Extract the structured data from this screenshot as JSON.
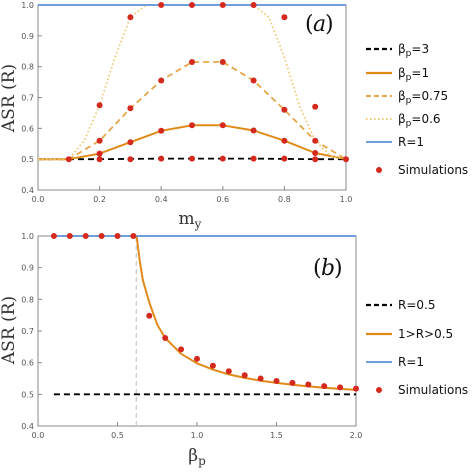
{
  "chart_data": [
    {
      "panel": "(a)",
      "type": "line",
      "xlabel": "m_y",
      "ylabel": "ASR (R)",
      "xlim": [
        0,
        1
      ],
      "ylim": [
        0.4,
        1.0
      ],
      "xticks": [
        "0.0",
        "0.2",
        "0.4",
        "0.6",
        "0.8",
        "1.0"
      ],
      "yticks": [
        "0.4",
        "0.5",
        "0.6",
        "0.7",
        "0.8",
        "0.9",
        "1.0"
      ],
      "grid": false,
      "legend_placement": "right",
      "series": [
        {
          "name": "β_p=3",
          "style": "dashed",
          "color": "#000000",
          "x": [
            0,
            0.1,
            0.2,
            0.3,
            0.4,
            0.5,
            0.6,
            0.7,
            0.8,
            0.9,
            1.0
          ],
          "y": [
            0.5,
            0.5,
            0.5,
            0.501,
            0.502,
            0.502,
            0.502,
            0.502,
            0.501,
            0.5,
            0.5
          ]
        },
        {
          "name": "β_p=1",
          "style": "solid",
          "color": "#e08a1a",
          "x": [
            0,
            0.1,
            0.2,
            0.3,
            0.4,
            0.5,
            0.6,
            0.7,
            0.8,
            0.9,
            1.0
          ],
          "y": [
            0.5,
            0.5,
            0.518,
            0.555,
            0.592,
            0.61,
            0.61,
            0.593,
            0.56,
            0.52,
            0.5
          ]
        },
        {
          "name": "β_p=0.75",
          "style": "dashed",
          "color": "#e6a64a",
          "x": [
            0,
            0.1,
            0.2,
            0.3,
            0.4,
            0.5,
            0.6,
            0.7,
            0.8,
            0.9,
            1.0
          ],
          "y": [
            0.5,
            0.5,
            0.56,
            0.665,
            0.755,
            0.815,
            0.815,
            0.755,
            0.66,
            0.56,
            0.5
          ]
        },
        {
          "name": "β_p=0.6",
          "style": "dotted",
          "color": "#f0c870",
          "x": [
            0,
            0.1,
            0.15,
            0.2,
            0.25,
            0.3,
            0.35,
            0.7,
            0.75,
            0.8,
            0.85,
            0.9,
            0.95,
            1.0
          ],
          "y": [
            0.5,
            0.5,
            0.56,
            0.675,
            0.83,
            0.96,
            1.0,
            1.0,
            0.96,
            0.83,
            0.67,
            0.56,
            0.51,
            0.5
          ]
        },
        {
          "name": "R=1",
          "style": "solid",
          "color": "#6f9ed8",
          "x": [
            0,
            1.0
          ],
          "y": [
            1.0,
            1.0
          ]
        }
      ],
      "simulations": {
        "name": "Simulations",
        "color": "#d42a1e",
        "points": [
          [
            0.1,
            0.5
          ],
          [
            0.2,
            0.5
          ],
          [
            0.3,
            0.5
          ],
          [
            0.4,
            0.502
          ],
          [
            0.5,
            0.502
          ],
          [
            0.6,
            0.502
          ],
          [
            0.7,
            0.502
          ],
          [
            0.8,
            0.502
          ],
          [
            0.9,
            0.5
          ],
          [
            1.0,
            0.5
          ],
          [
            0.2,
            0.518
          ],
          [
            0.3,
            0.555
          ],
          [
            0.4,
            0.592
          ],
          [
            0.5,
            0.61
          ],
          [
            0.6,
            0.61
          ],
          [
            0.7,
            0.593
          ],
          [
            0.8,
            0.56
          ],
          [
            0.9,
            0.52
          ],
          [
            0.2,
            0.56
          ],
          [
            0.3,
            0.665
          ],
          [
            0.4,
            0.755
          ],
          [
            0.5,
            0.815
          ],
          [
            0.6,
            0.815
          ],
          [
            0.7,
            0.755
          ],
          [
            0.8,
            0.66
          ],
          [
            0.9,
            0.56
          ],
          [
            0.2,
            0.675
          ],
          [
            0.3,
            0.96
          ],
          [
            0.4,
            1.0
          ],
          [
            0.5,
            1.0
          ],
          [
            0.6,
            1.0
          ],
          [
            0.7,
            1.0
          ],
          [
            0.8,
            0.96
          ],
          [
            0.9,
            0.67
          ]
        ]
      }
    },
    {
      "panel": "(b)",
      "type": "line",
      "xlabel": "β_p",
      "ylabel": "ASR (R)",
      "xlim": [
        0,
        2.0
      ],
      "ylim": [
        0.4,
        1.0
      ],
      "xticks": [
        "0.0",
        "0.5",
        "1.0",
        "1.5",
        "2.0"
      ],
      "yticks": [
        "0.4",
        "0.5",
        "0.6",
        "0.7",
        "0.8",
        "0.9",
        "1.0"
      ],
      "grid": false,
      "legend_placement": "right",
      "vline_x": 0.618,
      "series": [
        {
          "name": "R=0.5",
          "style": "dashed",
          "color": "#000000",
          "x": [
            0.1,
            2.0
          ],
          "y": [
            0.5,
            0.5
          ]
        },
        {
          "name": "1>R>0.5",
          "style": "solid",
          "color": "#e08a1a",
          "x": [
            0.62,
            0.64,
            0.66,
            0.7,
            0.75,
            0.8,
            0.9,
            1.0,
            1.1,
            1.2,
            1.3,
            1.4,
            1.5,
            1.6,
            1.7,
            1.8,
            1.9,
            2.0
          ],
          "y": [
            1.0,
            0.92,
            0.86,
            0.79,
            0.72,
            0.678,
            0.628,
            0.598,
            0.578,
            0.563,
            0.552,
            0.543,
            0.536,
            0.53,
            0.525,
            0.521,
            0.517,
            0.514
          ]
        },
        {
          "name": "R=1",
          "style": "solid",
          "color": "#6f9ed8",
          "x": [
            0.1,
            2.0
          ],
          "y": [
            1.0,
            1.0
          ]
        }
      ],
      "simulations": {
        "name": "Simulations",
        "color": "#d42a1e",
        "points": [
          [
            0.1,
            1.0
          ],
          [
            0.2,
            1.0
          ],
          [
            0.3,
            1.0
          ],
          [
            0.4,
            1.0
          ],
          [
            0.5,
            1.0
          ],
          [
            0.6,
            1.0
          ],
          [
            0.7,
            0.748
          ],
          [
            0.8,
            0.678
          ],
          [
            0.9,
            0.642
          ],
          [
            1.0,
            0.612
          ],
          [
            1.1,
            0.59
          ],
          [
            1.2,
            0.573
          ],
          [
            1.3,
            0.56
          ],
          [
            1.4,
            0.55
          ],
          [
            1.5,
            0.542
          ],
          [
            1.6,
            0.536
          ],
          [
            1.7,
            0.531
          ],
          [
            1.8,
            0.526
          ],
          [
            1.9,
            0.522
          ],
          [
            2.0,
            0.518
          ]
        ]
      }
    }
  ]
}
